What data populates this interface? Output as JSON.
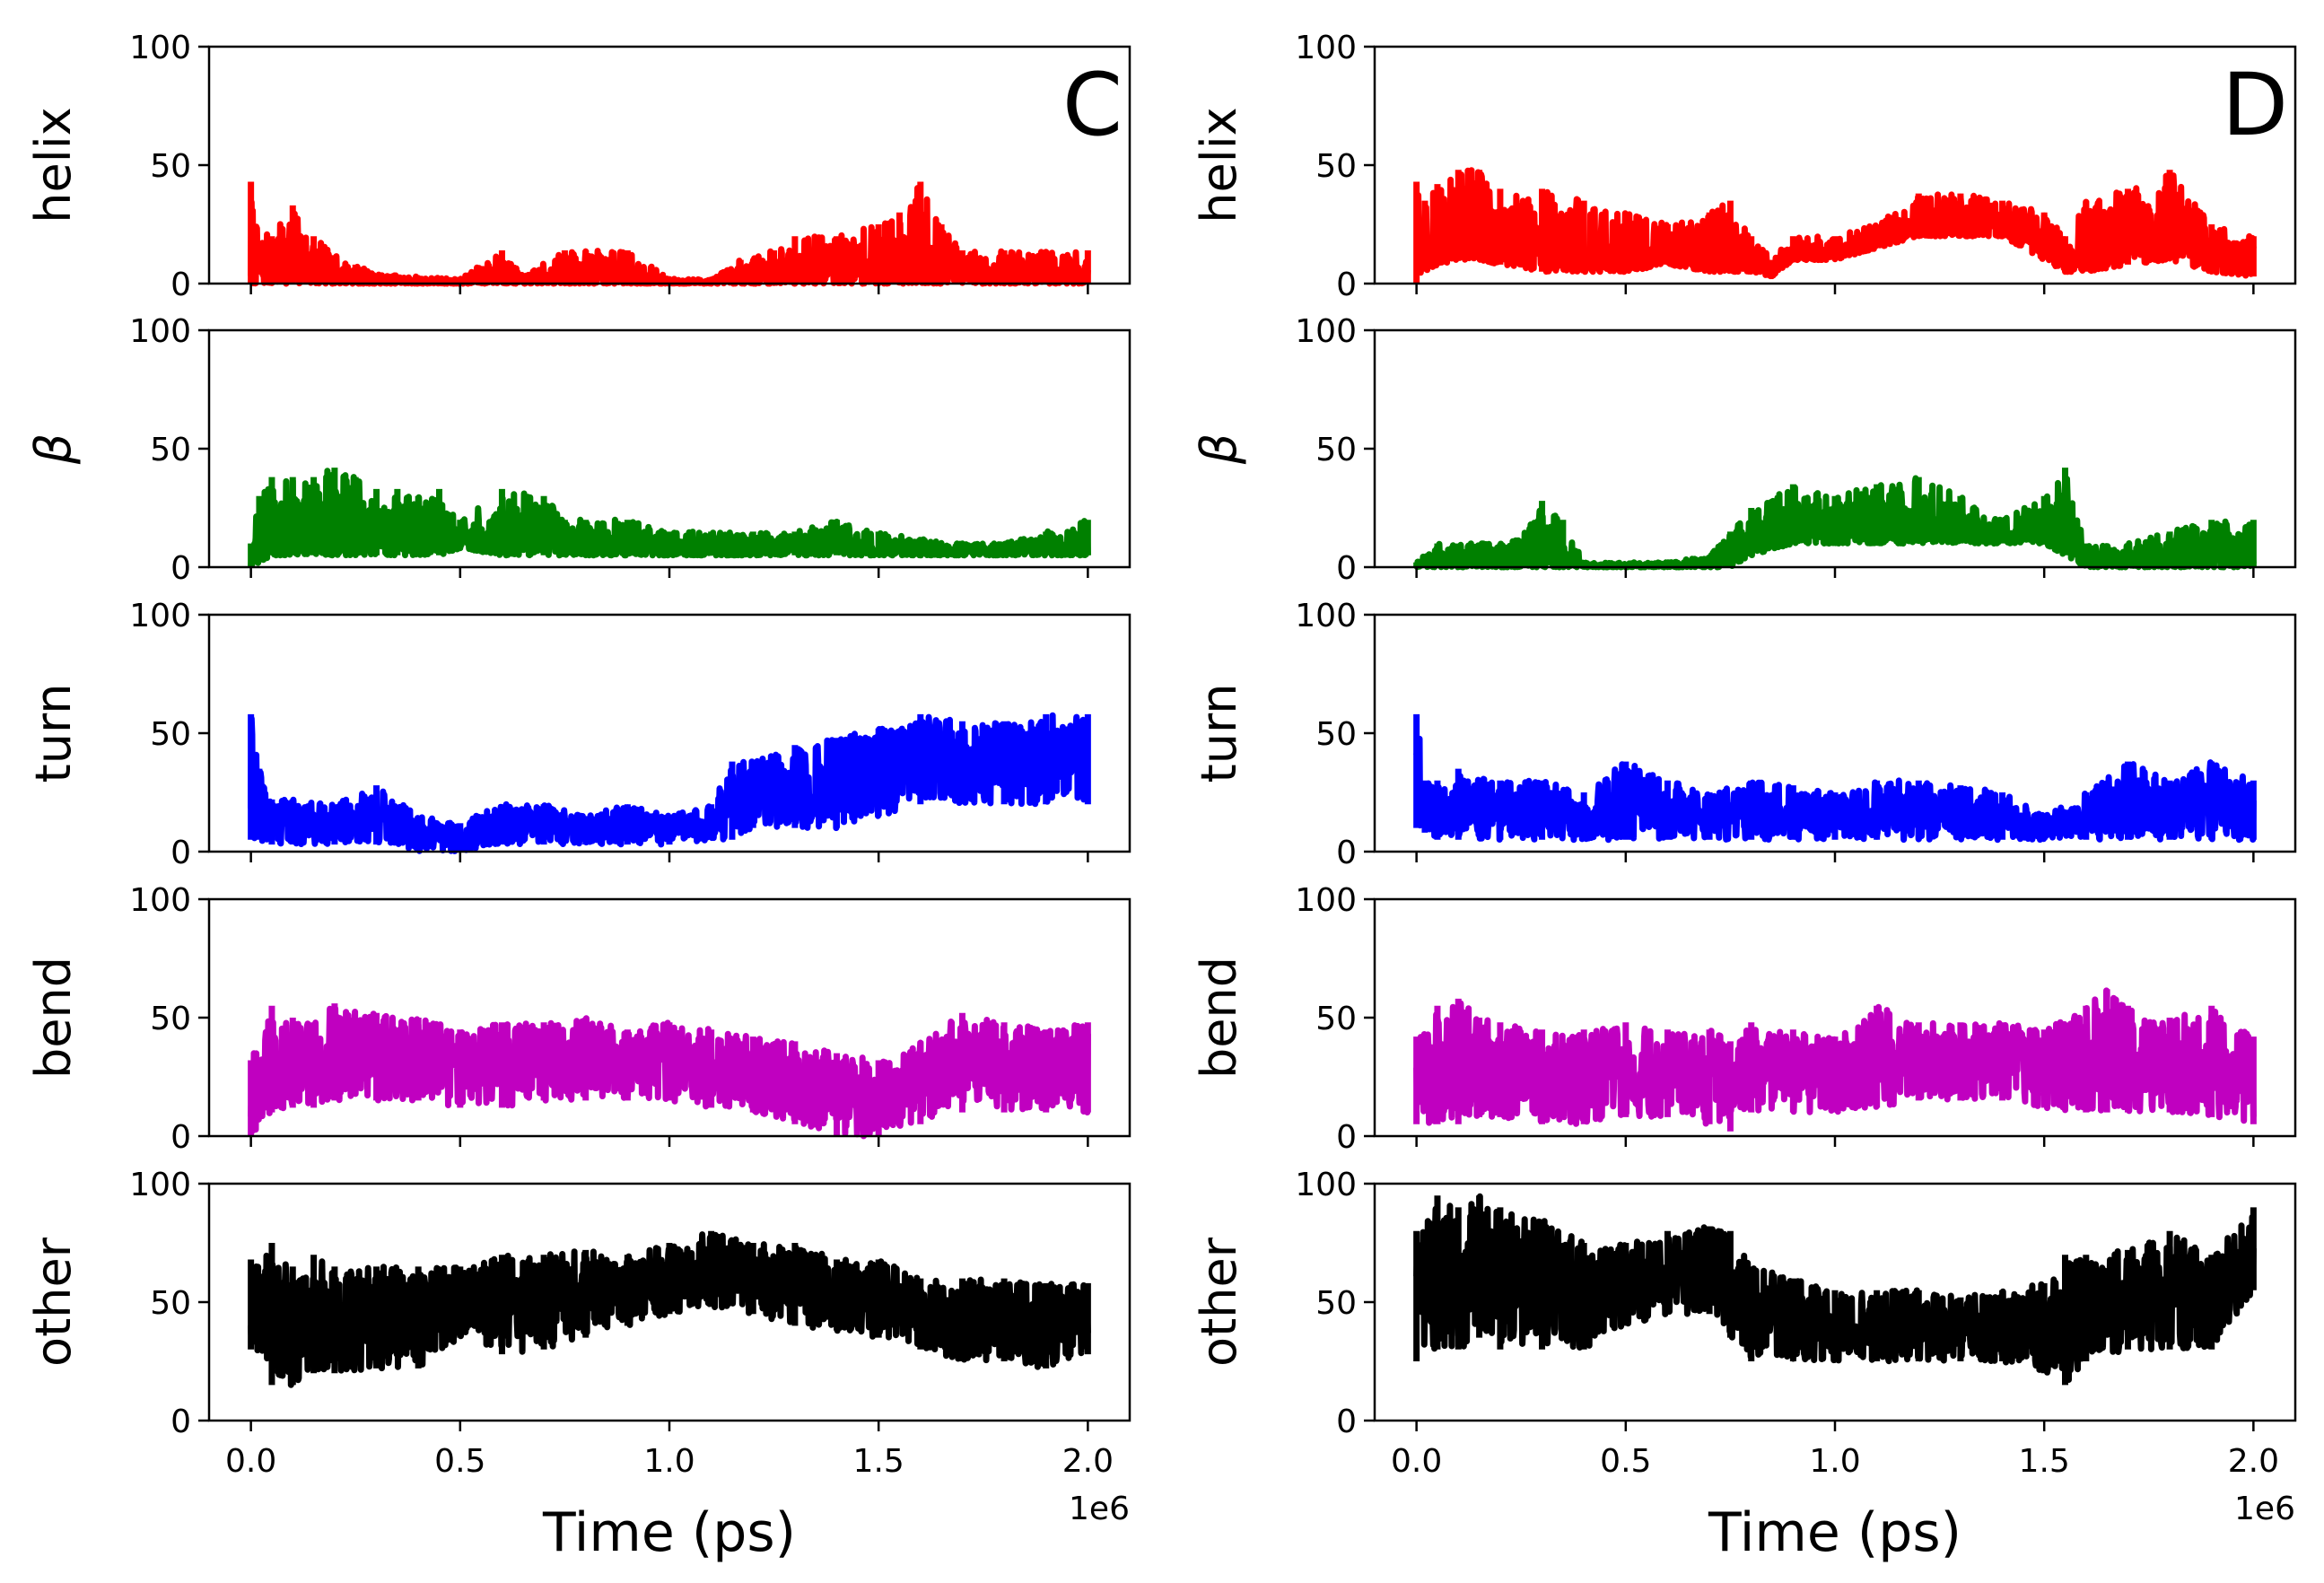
{
  "chart_data": [
    {
      "type": "line",
      "panel_label": "C",
      "xlabel": "Time  (ps)",
      "x_offset_label": "1e6",
      "xlim": [
        -0.1,
        2.1
      ],
      "x_ticks": [
        0.0,
        0.5,
        1.0,
        1.5,
        2.0
      ],
      "x_tick_labels": [
        "0.0",
        "0.5",
        "1.0",
        "1.5",
        "2.0"
      ],
      "y_ticks": [
        0,
        50,
        100
      ],
      "y_tick_labels": [
        "0",
        "50",
        "100"
      ],
      "ylim": [
        0,
        100
      ],
      "subplots": [
        {
          "ylabel": "helix",
          "color": "#ff0000",
          "x": [
            0.0,
            0.01,
            0.05,
            0.1,
            0.15,
            0.2,
            0.25,
            0.3,
            0.5,
            0.6,
            0.65,
            0.75,
            0.8,
            0.9,
            1.0,
            1.1,
            1.17,
            1.25,
            1.3,
            1.35,
            1.4,
            1.5,
            1.55,
            1.6,
            1.65,
            1.7,
            1.8,
            1.9,
            2.0
          ],
          "lo": [
            0,
            0,
            0,
            0,
            0,
            0,
            0,
            0,
            0,
            0,
            0,
            0,
            0,
            0,
            0,
            0,
            0,
            0,
            0,
            0,
            0,
            0,
            0,
            0,
            0,
            0,
            0,
            0,
            0
          ],
          "hi": [
            43,
            25,
            20,
            33,
            20,
            12,
            8,
            4,
            2,
            14,
            3,
            14,
            14,
            14,
            2,
            2,
            10,
            14,
            20,
            20,
            20,
            25,
            30,
            43,
            25,
            14,
            14,
            14,
            14
          ]
        },
        {
          "ylabel": "β",
          "color": "#008000",
          "x": [
            0.0,
            0.02,
            0.05,
            0.1,
            0.15,
            0.2,
            0.25,
            0.3,
            0.35,
            0.4,
            0.45,
            0.5,
            0.6,
            0.7,
            0.75,
            0.8,
            0.9,
            1.0,
            1.1,
            1.2,
            1.3,
            1.4,
            1.5,
            1.6,
            1.7,
            1.8,
            1.9,
            2.0
          ],
          "lo": [
            0,
            2,
            5,
            5,
            5,
            5,
            5,
            5,
            5,
            5,
            5,
            8,
            5,
            5,
            5,
            5,
            5,
            5,
            5,
            5,
            5,
            5,
            5,
            5,
            5,
            5,
            5,
            5
          ],
          "hi": [
            10,
            30,
            38,
            38,
            38,
            42,
            38,
            33,
            33,
            30,
            33,
            20,
            33,
            30,
            20,
            20,
            20,
            15,
            15,
            15,
            15,
            20,
            15,
            12,
            10,
            10,
            15,
            20
          ]
        },
        {
          "ylabel": "turn",
          "color": "#0000ff",
          "x": [
            0.0,
            0.02,
            0.05,
            0.1,
            0.2,
            0.3,
            0.4,
            0.5,
            0.6,
            0.7,
            0.8,
            0.9,
            1.0,
            1.1,
            1.15,
            1.2,
            1.3,
            1.4,
            1.5,
            1.6,
            1.7,
            1.8,
            1.9,
            2.0
          ],
          "lo": [
            5,
            5,
            3,
            3,
            3,
            3,
            0,
            0,
            3,
            3,
            3,
            3,
            3,
            5,
            5,
            10,
            10,
            10,
            15,
            20,
            20,
            20,
            20,
            20
          ],
          "hi": [
            58,
            35,
            22,
            22,
            20,
            28,
            15,
            12,
            20,
            20,
            15,
            20,
            15,
            20,
            38,
            38,
            45,
            48,
            52,
            58,
            55,
            55,
            58,
            58
          ]
        },
        {
          "ylabel": "bend",
          "color": "#c000c0",
          "x": [
            0.0,
            0.05,
            0.1,
            0.15,
            0.2,
            0.3,
            0.4,
            0.5,
            0.6,
            0.7,
            0.8,
            0.9,
            1.0,
            1.1,
            1.2,
            1.3,
            1.4,
            1.5,
            1.6,
            1.7,
            1.8,
            1.9,
            2.0
          ],
          "lo": [
            0,
            10,
            12,
            12,
            15,
            15,
            15,
            12,
            12,
            15,
            15,
            15,
            15,
            12,
            10,
            5,
            0,
            0,
            5,
            10,
            10,
            10,
            10
          ],
          "hi": [
            32,
            55,
            50,
            48,
            56,
            52,
            50,
            45,
            48,
            48,
            50,
            45,
            48,
            45,
            42,
            40,
            35,
            32,
            40,
            52,
            48,
            45,
            48
          ]
        },
        {
          "ylabel": "other",
          "color": "#000000",
          "x": [
            0.0,
            0.05,
            0.1,
            0.15,
            0.2,
            0.3,
            0.4,
            0.5,
            0.6,
            0.7,
            0.8,
            0.9,
            1.0,
            1.1,
            1.2,
            1.3,
            1.4,
            1.5,
            1.6,
            1.7,
            1.8,
            1.9,
            2.0
          ],
          "lo": [
            30,
            15,
            15,
            20,
            20,
            22,
            22,
            35,
            28,
            30,
            35,
            40,
            45,
            48,
            45,
            40,
            38,
            35,
            30,
            25,
            25,
            22,
            28
          ],
          "hi": [
            68,
            75,
            65,
            70,
            65,
            65,
            65,
            65,
            70,
            70,
            72,
            70,
            75,
            80,
            75,
            75,
            68,
            68,
            60,
            60,
            60,
            58,
            58
          ]
        }
      ]
    },
    {
      "type": "line",
      "panel_label": "D",
      "xlabel": "Time  (ps)",
      "x_offset_label": "1e6",
      "xlim": [
        -0.1,
        2.1
      ],
      "x_ticks": [
        0.0,
        0.5,
        1.0,
        1.5,
        2.0
      ],
      "x_tick_labels": [
        "0.0",
        "0.5",
        "1.0",
        "1.5",
        "2.0"
      ],
      "y_ticks": [
        0,
        50,
        100
      ],
      "y_tick_labels": [
        "0",
        "50",
        "100"
      ],
      "ylim": [
        0,
        100
      ],
      "subplots": [
        {
          "ylabel": "helix",
          "color": "#ff0000",
          "x": [
            0.0,
            0.02,
            0.05,
            0.1,
            0.15,
            0.2,
            0.3,
            0.4,
            0.5,
            0.6,
            0.7,
            0.75,
            0.8,
            0.85,
            0.9,
            1.0,
            1.1,
            1.2,
            1.3,
            1.4,
            1.5,
            1.55,
            1.6,
            1.7,
            1.8,
            1.9,
            2.0
          ],
          "lo": [
            0,
            5,
            8,
            10,
            10,
            8,
            5,
            5,
            5,
            8,
            5,
            5,
            5,
            3,
            10,
            10,
            15,
            20,
            20,
            20,
            10,
            5,
            5,
            8,
            10,
            5,
            3
          ],
          "hi": [
            43,
            35,
            42,
            48,
            48,
            40,
            40,
            35,
            30,
            25,
            30,
            35,
            20,
            10,
            20,
            20,
            25,
            38,
            38,
            35,
            30,
            20,
            35,
            40,
            48,
            25,
            20
          ]
        },
        {
          "ylabel": "β",
          "color": "#008000",
          "x": [
            0.0,
            0.05,
            0.1,
            0.2,
            0.25,
            0.3,
            0.35,
            0.4,
            0.5,
            0.6,
            0.7,
            0.75,
            0.8,
            0.9,
            1.0,
            1.1,
            1.2,
            1.3,
            1.4,
            1.5,
            1.55,
            1.6,
            1.7,
            1.8,
            1.9,
            2.0
          ],
          "lo": [
            0,
            0,
            0,
            0,
            0,
            0,
            0,
            0,
            0,
            0,
            0,
            0,
            5,
            10,
            10,
            10,
            10,
            10,
            10,
            10,
            5,
            0,
            0,
            0,
            0,
            0
          ],
          "hi": [
            2,
            10,
            10,
            10,
            12,
            28,
            20,
            2,
            2,
            2,
            5,
            15,
            25,
            35,
            30,
            35,
            38,
            30,
            20,
            30,
            42,
            10,
            10,
            15,
            20,
            20
          ]
        },
        {
          "ylabel": "turn",
          "color": "#0000ff",
          "x": [
            0.0,
            0.02,
            0.05,
            0.1,
            0.2,
            0.3,
            0.4,
            0.5,
            0.6,
            0.7,
            0.8,
            0.9,
            1.0,
            1.1,
            1.2,
            1.3,
            1.4,
            1.5,
            1.6,
            1.7,
            1.8,
            1.9,
            2.0
          ],
          "lo": [
            10,
            8,
            5,
            5,
            5,
            5,
            5,
            5,
            5,
            5,
            5,
            5,
            5,
            5,
            5,
            5,
            5,
            5,
            5,
            5,
            5,
            5,
            5
          ],
          "hi": [
            58,
            30,
            30,
            35,
            30,
            30,
            25,
            38,
            30,
            25,
            30,
            28,
            25,
            30,
            30,
            28,
            25,
            15,
            25,
            38,
            30,
            38,
            30
          ]
        },
        {
          "ylabel": "bend",
          "color": "#c000c0",
          "x": [
            0.0,
            0.05,
            0.1,
            0.15,
            0.2,
            0.3,
            0.4,
            0.5,
            0.6,
            0.7,
            0.75,
            0.8,
            0.9,
            1.0,
            1.1,
            1.2,
            1.3,
            1.4,
            1.5,
            1.6,
            1.65,
            1.7,
            1.8,
            1.9,
            2.0
          ],
          "lo": [
            5,
            5,
            5,
            8,
            8,
            5,
            5,
            8,
            8,
            5,
            2,
            10,
            10,
            10,
            12,
            15,
            15,
            15,
            12,
            10,
            10,
            10,
            10,
            8,
            5
          ],
          "hi": [
            42,
            55,
            58,
            50,
            48,
            45,
            45,
            48,
            45,
            45,
            40,
            48,
            45,
            42,
            55,
            48,
            48,
            48,
            45,
            55,
            62,
            55,
            50,
            55,
            42
          ]
        },
        {
          "ylabel": "other",
          "color": "#000000",
          "x": [
            0.0,
            0.05,
            0.1,
            0.15,
            0.2,
            0.3,
            0.4,
            0.5,
            0.6,
            0.7,
            0.75,
            0.8,
            0.9,
            1.0,
            1.1,
            1.2,
            1.3,
            1.4,
            1.5,
            1.55,
            1.6,
            1.7,
            1.8,
            1.9,
            2.0
          ],
          "lo": [
            25,
            30,
            30,
            35,
            30,
            30,
            30,
            40,
            45,
            45,
            35,
            25,
            25,
            25,
            25,
            25,
            25,
            25,
            20,
            15,
            25,
            30,
            30,
            30,
            55
          ],
          "hi": [
            80,
            95,
            90,
            95,
            90,
            85,
            75,
            75,
            80,
            82,
            80,
            65,
            60,
            55,
            55,
            55,
            52,
            55,
            58,
            70,
            70,
            72,
            80,
            70,
            90
          ]
        }
      ]
    }
  ]
}
